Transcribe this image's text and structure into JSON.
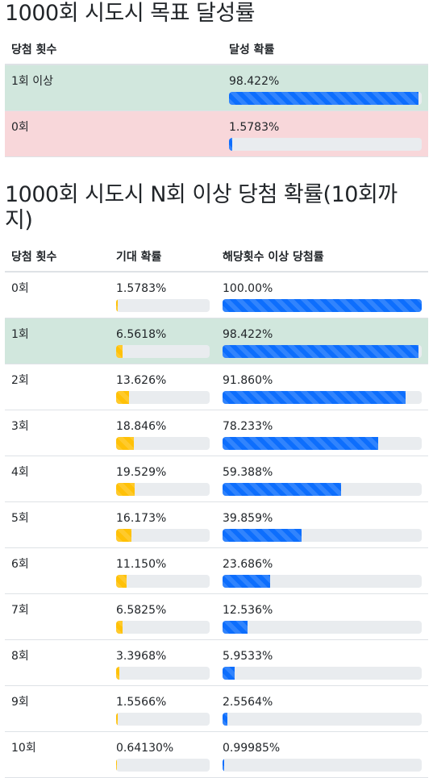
{
  "section1": {
    "title": "1000회 시도시 목표 달성률",
    "headers": [
      "당첨 횟수",
      "달성 확률"
    ],
    "rows": [
      {
        "label": "1회 이상",
        "prob": "98.422%",
        "fill": 98.422
      },
      {
        "label": "0회",
        "prob": "1.5783%",
        "fill": 1.5783
      }
    ]
  },
  "section2": {
    "title": "1000회 시도시 N회 이상 당첨 확률(10회까지)",
    "headers": [
      "당첨 횟수",
      "기대 확률",
      "해당횟수 이상 당첨률"
    ],
    "rows": [
      {
        "label": "0회",
        "exp": "1.5783%",
        "exp_fill": 1.5783,
        "cum": "100.00%",
        "cum_fill": 100
      },
      {
        "label": "1회",
        "exp": "6.5618%",
        "exp_fill": 6.5618,
        "cum": "98.422%",
        "cum_fill": 98.422
      },
      {
        "label": "2회",
        "exp": "13.626%",
        "exp_fill": 13.626,
        "cum": "91.860%",
        "cum_fill": 91.86
      },
      {
        "label": "3회",
        "exp": "18.846%",
        "exp_fill": 18.846,
        "cum": "78.233%",
        "cum_fill": 78.233
      },
      {
        "label": "4회",
        "exp": "19.529%",
        "exp_fill": 19.529,
        "cum": "59.388%",
        "cum_fill": 59.388
      },
      {
        "label": "5회",
        "exp": "16.173%",
        "exp_fill": 16.173,
        "cum": "39.859%",
        "cum_fill": 39.859
      },
      {
        "label": "6회",
        "exp": "11.150%",
        "exp_fill": 11.15,
        "cum": "23.686%",
        "cum_fill": 23.686
      },
      {
        "label": "7회",
        "exp": "6.5825%",
        "exp_fill": 6.5825,
        "cum": "12.536%",
        "cum_fill": 12.536
      },
      {
        "label": "8회",
        "exp": "3.3968%",
        "exp_fill": 3.3968,
        "cum": "5.9533%",
        "cum_fill": 5.9533
      },
      {
        "label": "9회",
        "exp": "1.5566%",
        "exp_fill": 1.5566,
        "cum": "2.5564%",
        "cum_fill": 2.5564
      },
      {
        "label": "10회",
        "exp": "0.64130%",
        "exp_fill": 0.6413,
        "cum": "0.99985%",
        "cum_fill": 0.99985
      }
    ]
  },
  "colors": {
    "primary": "#0d6efd",
    "warning": "#ffc107",
    "success_row": "#d1e7dd",
    "danger_row": "#f8d7da",
    "track": "#e9ecef"
  }
}
